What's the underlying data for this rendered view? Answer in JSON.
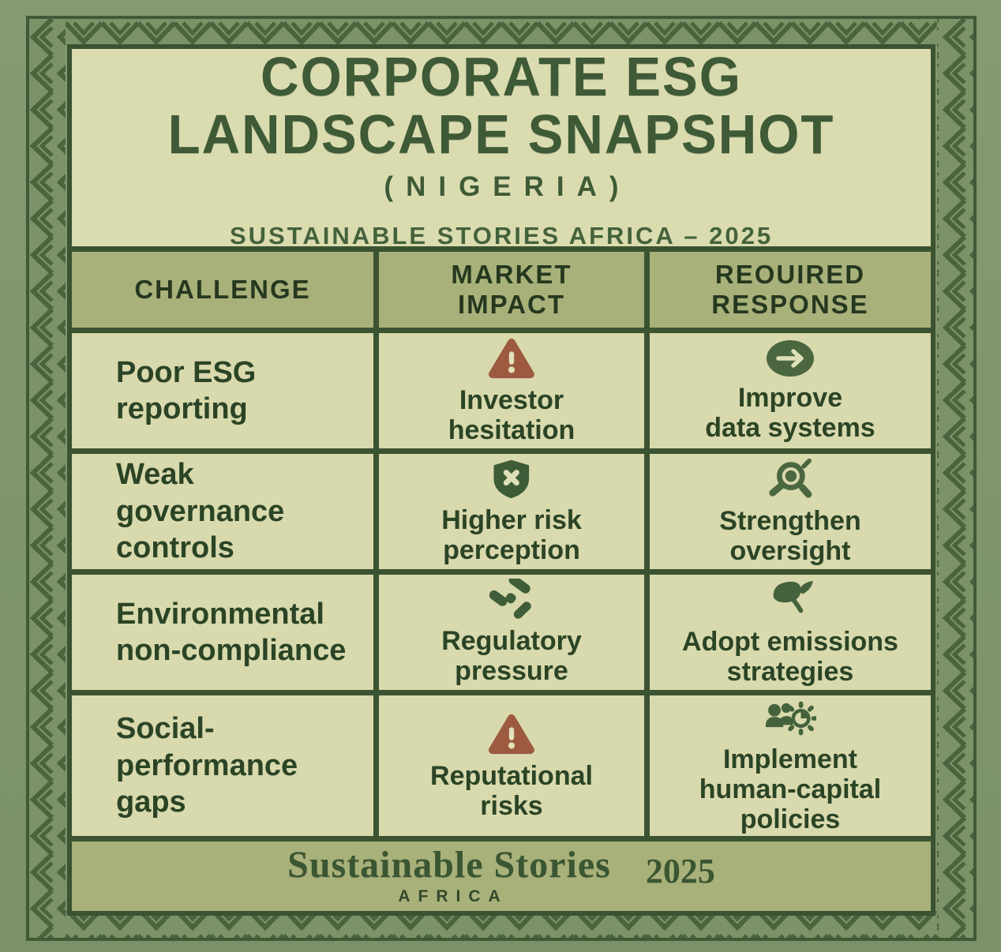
{
  "infographic": {
    "title": "CORPORATE ESG\nLANDSCAPE SNAPSHOT",
    "subtitle": "(NIGERIA)",
    "tagline": "SUSTAINABLE STORIES AFRICA – 2025"
  },
  "table": {
    "headers": {
      "challenge": "CHALLENGE",
      "impact": "MARKET\nIMPACT",
      "response": "REOUIRED\nRESPONSE"
    },
    "rows": [
      {
        "challenge": "Poor ESG\nreporting",
        "impact": {
          "icon": "warning-triangle-icon",
          "label": "Investor\nhesitation"
        },
        "response": {
          "icon": "arrow-right-circle-icon",
          "label": "Improve\ndata systems"
        }
      },
      {
        "challenge": "Weak\ngovernance\ncontrols",
        "impact": {
          "icon": "shield-x-icon",
          "label": "Higher risk\nperception"
        },
        "response": {
          "icon": "magnifier-icon",
          "label": "Strengthen\noversight"
        }
      },
      {
        "challenge": "Environmental\nnon-compliance",
        "impact": {
          "icon": "gavel-icon",
          "label": "Regulatory\npressure"
        },
        "response": {
          "icon": "leaf-icon",
          "label": "Adopt emissions\nstrategies"
        }
      },
      {
        "challenge": "Social-\nperformance\ngaps",
        "impact": {
          "icon": "warning-triangle-icon",
          "label": "Reputational\nrisks"
        },
        "response": {
          "icon": "people-gear-icon",
          "label": "Implement\nhuman-capital\npolicies"
        }
      }
    ]
  },
  "footer": {
    "brand": "Sustainable Stories",
    "brand_sub": "AFRICA",
    "year": "2025"
  },
  "colors": {
    "background_green": "#81986f",
    "frame_line_green": "#3f5a36",
    "grid_green": "#3b5331",
    "cell_cream": "#d8d9ad",
    "cell_olive": "#a9b17a",
    "text_dark_green": "#2b4426",
    "title_green": "#3e5a36",
    "warning_brown": "#9d5a40",
    "icon_green": "#44633c"
  }
}
